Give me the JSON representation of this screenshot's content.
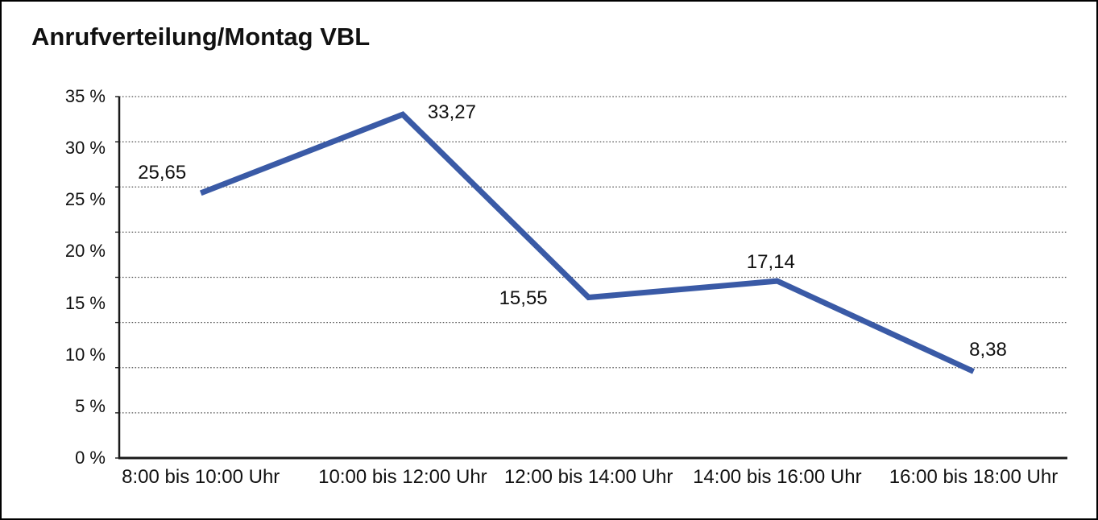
{
  "colors": {
    "line": "#3A5AA6",
    "axis": "#1A1A1A",
    "gridline": "#555555",
    "text": "#111111",
    "background": "#FFFFFF",
    "border": "#000000"
  },
  "chart_data": {
    "type": "line",
    "title": "Anrufverteilung/Montag VBL",
    "categories": [
      "8:00 bis 10:00 Uhr",
      "10:00 bis 12:00 Uhr",
      "12:00 bis 14:00 Uhr",
      "14:00 bis 16:00 Uhr",
      "16:00 bis 18:00 Uhr"
    ],
    "values": [
      25.65,
      33.27,
      15.55,
      17.14,
      8.38
    ],
    "point_labels": [
      "25,65",
      "33,27",
      "15,55",
      "17,14",
      "8,38"
    ],
    "point_label_anchors": [
      "above-left",
      "right",
      "left",
      "above",
      "above-right"
    ],
    "y_tick_labels": [
      "0 %",
      "5 %",
      "10 %",
      "15 %",
      "20 %",
      "25 %",
      "30 %",
      "35 %"
    ],
    "ylim": [
      0,
      35
    ],
    "y_label_steps": 7,
    "grid_divisions": 8,
    "grid": "horizontal-dotted",
    "legend_position": "none",
    "xlabel": "",
    "ylabel": ""
  }
}
